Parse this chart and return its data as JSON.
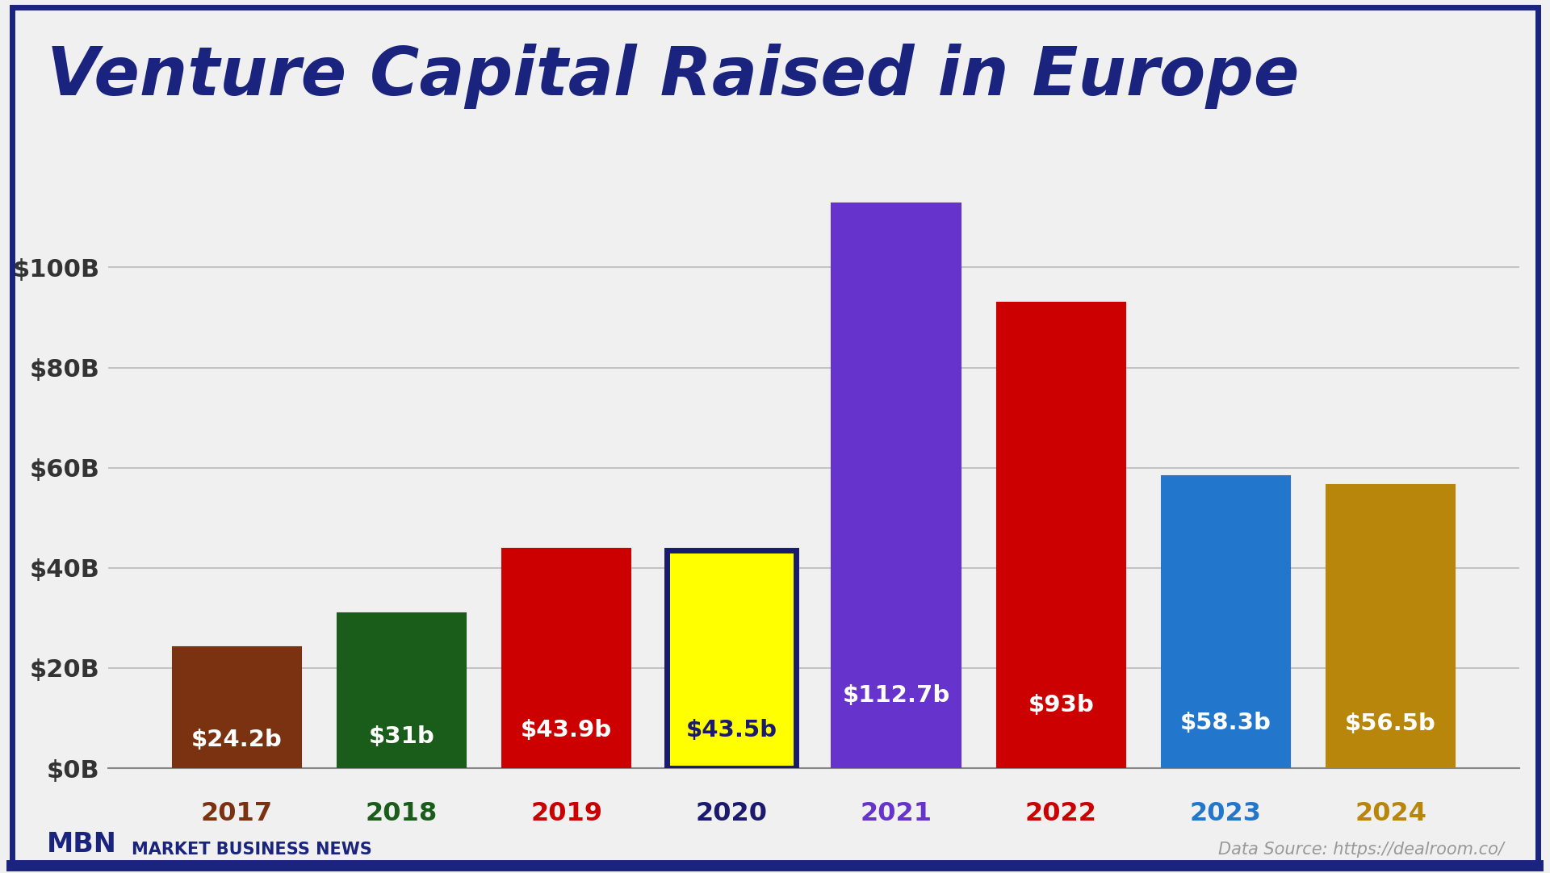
{
  "title": "Venture Capital Raised in Europe",
  "years": [
    "2017",
    "2018",
    "2019",
    "2020",
    "2021",
    "2022",
    "2023",
    "2024"
  ],
  "values": [
    24.2,
    31.0,
    43.9,
    43.5,
    112.7,
    93.0,
    58.3,
    56.5
  ],
  "labels": [
    "$24.2b",
    "$31b",
    "$43.9b",
    "$43.5b",
    "$112.7b",
    "$93b",
    "$58.3b",
    "$56.5b"
  ],
  "bar_colors": [
    "#7B3210",
    "#1A5C1A",
    "#CC0000",
    "#FFFF00",
    "#6633CC",
    "#CC0000",
    "#2277CC",
    "#B8860B"
  ],
  "bar_edge_colors": [
    "#7B3210",
    "#1A5C1A",
    "#CC0000",
    "#1A1A6E",
    "#6633CC",
    "#CC0000",
    "#2277CC",
    "#B8860B"
  ],
  "bar_edge_widths": [
    1.5,
    1.5,
    1.5,
    5.0,
    1.5,
    1.5,
    1.5,
    1.5
  ],
  "label_colors": [
    "#FFFFFF",
    "#FFFFFF",
    "#FFFFFF",
    "#1A1A6E",
    "#FFFFFF",
    "#FFFFFF",
    "#FFFFFF",
    "#FFFFFF"
  ],
  "tick_colors": [
    "#7B3210",
    "#1A5C1A",
    "#CC0000",
    "#1A1A6E",
    "#6633CC",
    "#CC0000",
    "#2277CC",
    "#B8860B"
  ],
  "ytick_labels": [
    "$0B",
    "$20B",
    "$40B",
    "$60B",
    "$80B",
    "$100B"
  ],
  "ytick_values": [
    0,
    20,
    40,
    60,
    80,
    100
  ],
  "ylim": [
    0,
    122
  ],
  "background_color": "#F0F0F0",
  "grid_color": "#BBBBBB",
  "title_color": "#1A237E",
  "border_color": "#1A237E",
  "mbn_text": "MBN",
  "mbn_sub_text": "MARKET BUSINESS NEWS",
  "footer_right": "Data Source: https://dealroom.co/",
  "mbn_color": "#1A237E",
  "footer_right_color": "#999999"
}
